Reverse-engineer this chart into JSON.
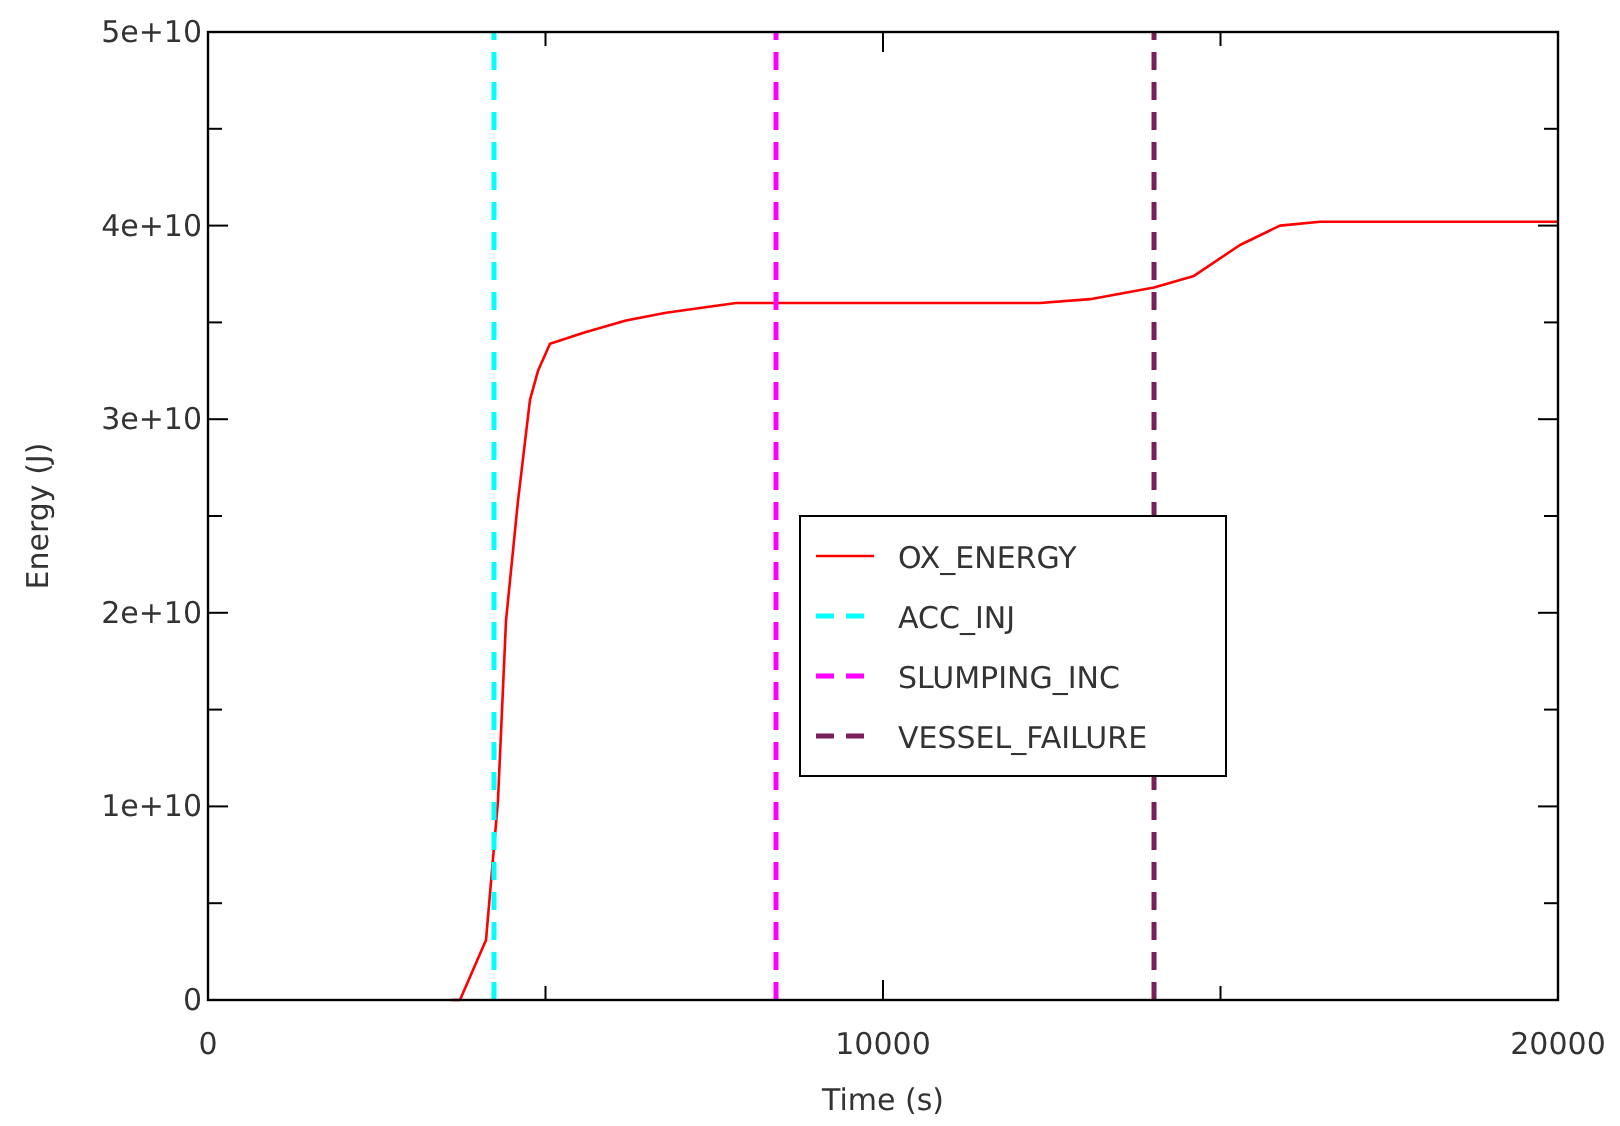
{
  "chart_data": {
    "type": "line",
    "xlabel": "Time (s)",
    "ylabel": "Energy (J)",
    "xlim": [
      0,
      20000
    ],
    "ylim": [
      0,
      50000000000
    ],
    "xticks": [
      0,
      {
        "value": 5000,
        "label": null
      },
      10000,
      {
        "value": 15000,
        "label": null
      },
      20000
    ],
    "yticks": [
      {
        "value": 0,
        "label": "0"
      },
      {
        "value": 5000000000,
        "label": null
      },
      {
        "value": 10000000000,
        "label": "1e+10"
      },
      {
        "value": 15000000000,
        "label": null
      },
      {
        "value": 20000000000,
        "label": "2e+10"
      },
      {
        "value": 25000000000,
        "label": null
      },
      {
        "value": 30000000000,
        "label": "3e+10"
      },
      {
        "value": 35000000000,
        "label": null
      },
      {
        "value": 40000000000,
        "label": "4e+10"
      },
      {
        "value": 45000000000,
        "label": null
      },
      {
        "value": 50000000000,
        "label": "5e+10"
      }
    ],
    "grid": false,
    "legend": "right",
    "series": [
      {
        "name": "OX_ENERGY",
        "color": "#ff0000",
        "line_style": "solid",
        "x": [
          3600,
          3733,
          4119,
          4296,
          4415,
          4593,
          4770,
          4889,
          5067,
          5600,
          6193,
          6785,
          7822,
          12326,
          13067,
          14015,
          14607,
          15289,
          15881,
          16474,
          20000
        ],
        "values": [
          0,
          0,
          3100000000,
          10300000000,
          19600000000,
          25800000000,
          31000000000,
          32500000000,
          33900000000,
          34500000000,
          35100000000,
          35500000000,
          36000000000,
          36000000000,
          36200000000,
          36800000000,
          37400000000,
          39000000000,
          40000000000,
          40200000000,
          40200000000
        ]
      },
      {
        "name": "ACC_INJ",
        "color": "#00ffff",
        "line_style": "dashed",
        "x": [
          4237,
          4237
        ],
        "values": [
          0,
          50000000000
        ]
      },
      {
        "name": "SLUMPING_INC",
        "color": "#ff00ff",
        "line_style": "dashed",
        "x": [
          8415,
          8415
        ],
        "values": [
          0,
          50000000000
        ]
      },
      {
        "name": "VESSEL_FAILURE",
        "color": "#7b1f5a",
        "line_style": "dashed",
        "x": [
          14015,
          14015
        ],
        "values": [
          0,
          50000000000
        ]
      }
    ]
  }
}
